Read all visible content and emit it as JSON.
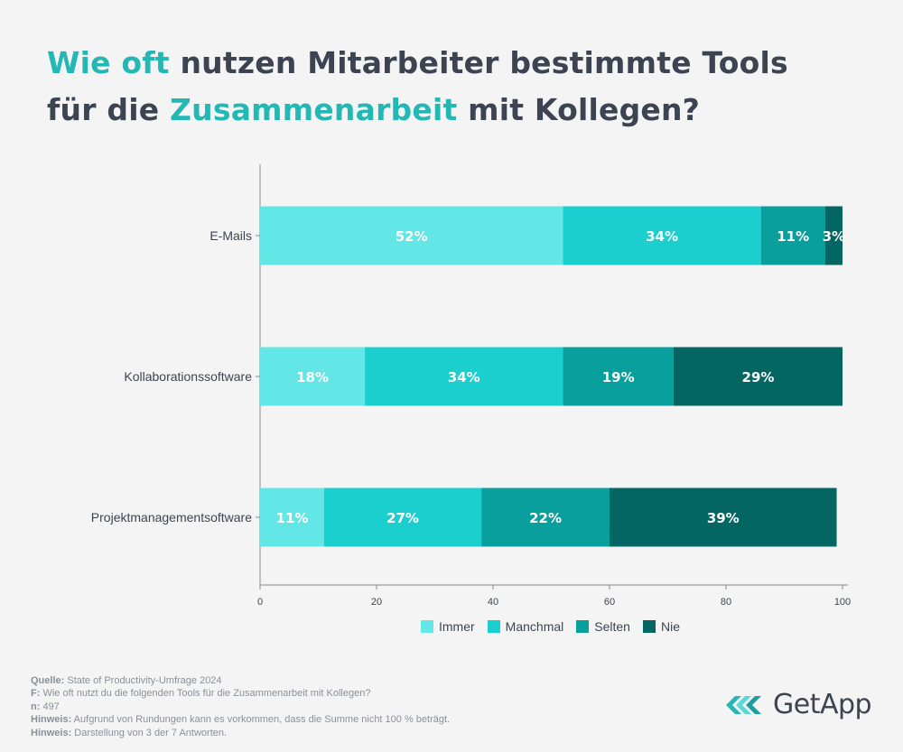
{
  "title": {
    "part1_highlight": "Wie oft",
    "part2": " nutzen Mitarbeiter bestimmte Tools",
    "part3": "für die ",
    "part4_highlight": "Zusammenarbeit",
    "part5": " mit Kollegen?"
  },
  "colors": {
    "highlight": "#24b8b4",
    "Immer": "#62e6e6",
    "Manchmal": "#1ccfcf",
    "Selten": "#089f9c",
    "Nie": "#046663"
  },
  "chart_data": {
    "type": "bar",
    "orientation": "horizontal",
    "stacked": true,
    "categories": [
      "E-Mails",
      "Kollaborationssoftware",
      "Projektmanagementsoftware"
    ],
    "series": [
      {
        "name": "Immer",
        "values": [
          52,
          18,
          11
        ]
      },
      {
        "name": "Manchmal",
        "values": [
          34,
          34,
          27
        ]
      },
      {
        "name": "Selten",
        "values": [
          11,
          19,
          22
        ]
      },
      {
        "name": "Nie",
        "values": [
          3,
          29,
          39
        ]
      }
    ],
    "xlim": [
      0,
      100
    ],
    "xticks": [
      0,
      20,
      40,
      60,
      80,
      100
    ],
    "value_suffix": "%",
    "legend_position": "bottom",
    "grid": false
  },
  "legend": [
    "Immer",
    "Manchmal",
    "Selten",
    "Nie"
  ],
  "notes": [
    {
      "key": "Quelle:",
      "text": "State of Productivity-Umfrage 2024"
    },
    {
      "key": "F:",
      "text": "Wie oft nutzt du die folgenden Tools für die Zusammenarbeit mit Kollegen?"
    },
    {
      "key": "n:",
      "text": "497"
    },
    {
      "key": "Hinweis:",
      "text": "Aufgrund von Rundungen kann es vorkommen, dass die Summe nicht 100 % beträgt."
    },
    {
      "key": "Hinweis:",
      "text": "Darstellung von 3 der 7 Antworten."
    }
  ],
  "brand": {
    "name": "GetApp"
  }
}
